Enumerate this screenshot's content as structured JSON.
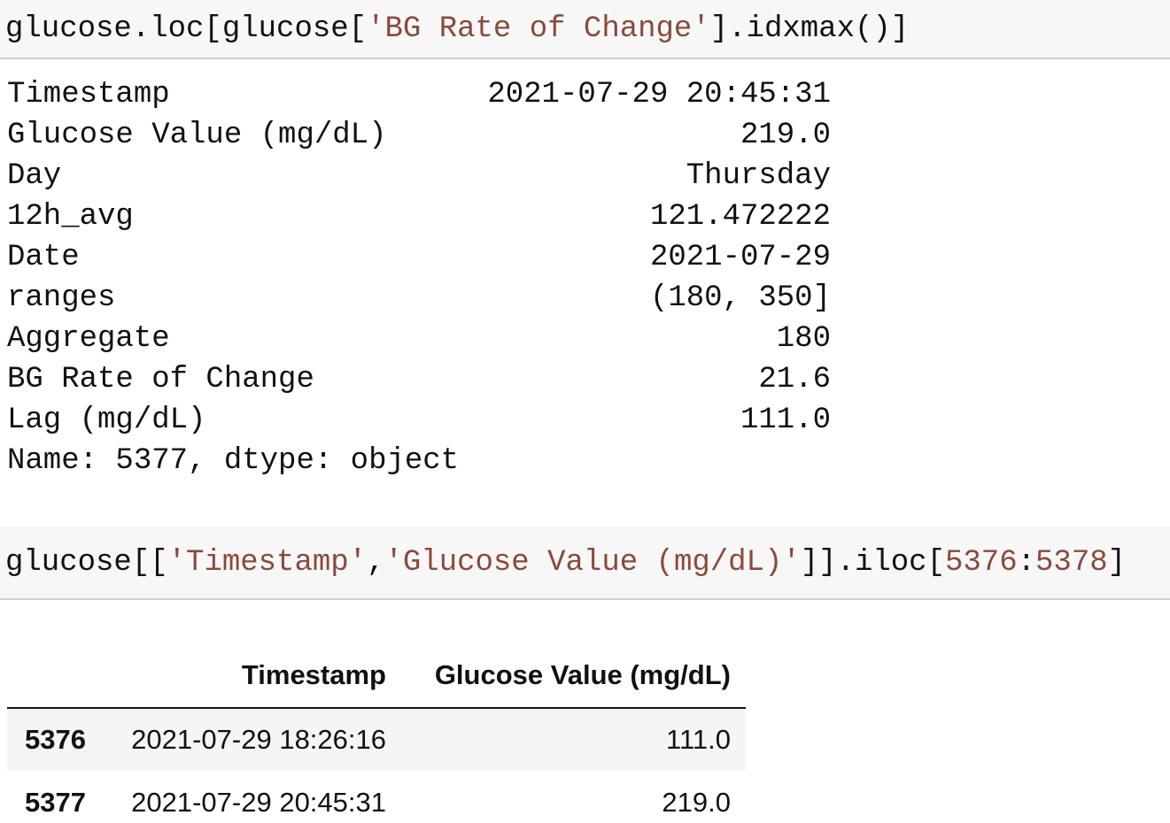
{
  "cells": [
    {
      "code": [
        "glucose.loc[glucose[",
        "'BG Rate of Change'",
        "].idxmax()]"
      ],
      "output": {
        "rows": [
          [
            "Timestamp",
            "2021-07-29 20:45:31"
          ],
          [
            "Glucose Value (mg/dL)",
            "219.0"
          ],
          [
            "Day",
            "Thursday"
          ],
          [
            "12h_avg",
            "121.472222"
          ],
          [
            "Date",
            "2021-07-29"
          ],
          [
            "ranges",
            "(180, 350]"
          ],
          [
            "Aggregate",
            "180"
          ],
          [
            "BG Rate of Change",
            "21.6"
          ],
          [
            "Lag (mg/dL)",
            "111.0"
          ]
        ],
        "footer": "Name: 5377, dtype: object"
      }
    },
    {
      "code": [
        "glucose[[",
        "'Timestamp'",
        ",",
        "'Glucose Value (mg/dL)'",
        "]].iloc[",
        "5376",
        ":",
        "5378",
        "]"
      ],
      "output": {
        "table": {
          "columns": [
            "Timestamp",
            "Glucose Value (mg/dL)"
          ],
          "rows": [
            {
              "index": "5376",
              "cells": [
                "2021-07-29 18:26:16",
                "111.0"
              ]
            },
            {
              "index": "5377",
              "cells": [
                "2021-07-29 20:45:31",
                "219.0"
              ]
            }
          ]
        }
      }
    }
  ]
}
